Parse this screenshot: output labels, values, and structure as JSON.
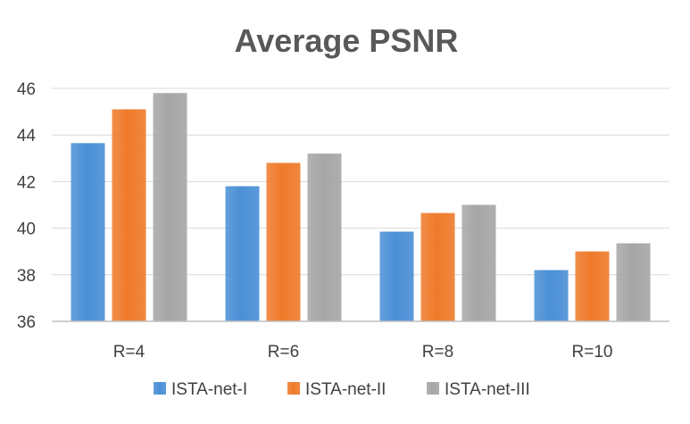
{
  "chart_data": {
    "type": "bar",
    "title": "Average PSNR",
    "xlabel": "",
    "ylabel": "",
    "categories": [
      "R=4",
      "R=6",
      "R=8",
      "R=10"
    ],
    "series": [
      {
        "name": "ISTA-net-I",
        "values": [
          43.65,
          41.8,
          39.85,
          38.2
        ],
        "color": "#4a8fd6"
      },
      {
        "name": "ISTA-net-II",
        "values": [
          45.1,
          42.8,
          40.65,
          39.0
        ],
        "color": "#ef7a2a"
      },
      {
        "name": "ISTA-net-III",
        "values": [
          45.8,
          43.2,
          41.0,
          39.35
        ],
        "color": "#a6a6a6"
      }
    ],
    "ylim": [
      36,
      46
    ],
    "yticks": [
      "36",
      "38",
      "40",
      "42",
      "44",
      "46"
    ],
    "grid": true,
    "legend_position": "bottom"
  }
}
